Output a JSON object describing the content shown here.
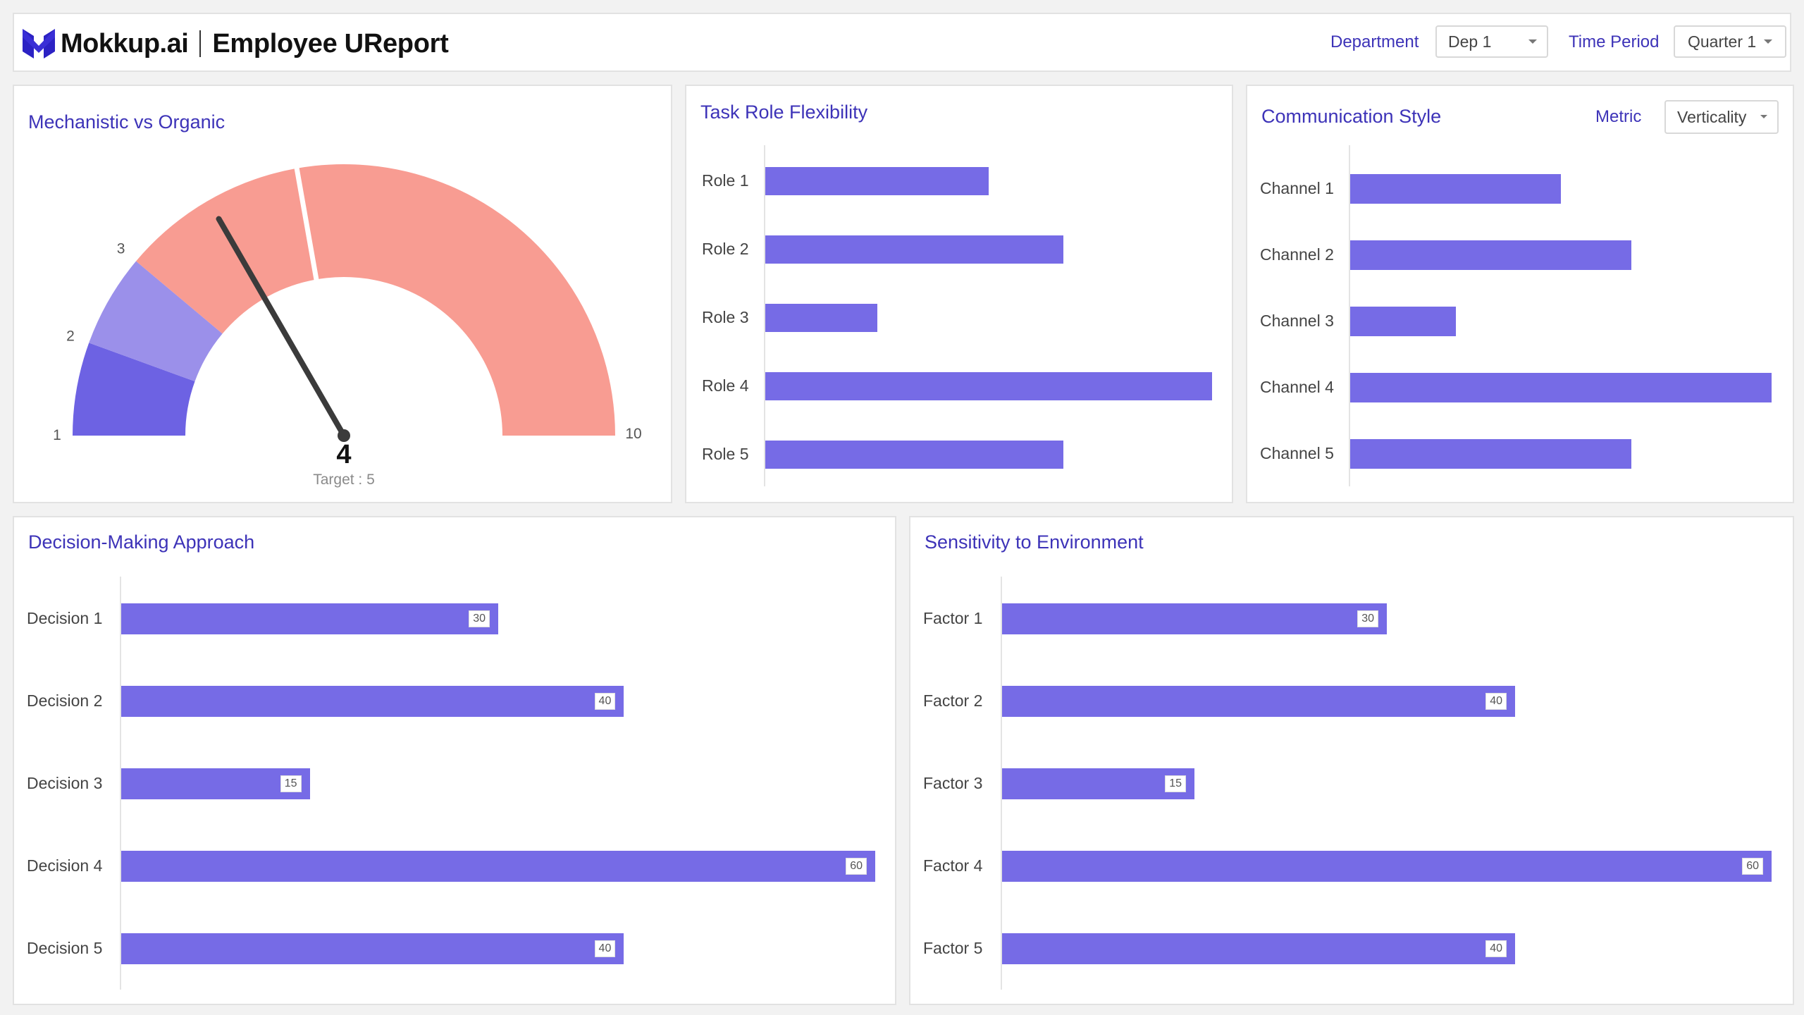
{
  "header": {
    "brand": "Mokkup.ai",
    "app_title": "Employee UReport",
    "department_label": "Department",
    "department_value": "Dep 1",
    "period_label": "Time Period",
    "period_value": "Quarter 1"
  },
  "colors": {
    "accent": "#3d33b8",
    "bar": "#766be6",
    "gauge_low": "#6d62e3",
    "gauge_mid": "#9b90ea",
    "gauge_high": "#f89c92"
  },
  "gauge": {
    "title": "Mechanistic vs Organic",
    "value": 4,
    "value_label": "4",
    "target": 5,
    "target_text": "Target : 5",
    "min": 1,
    "max": 10,
    "tick_1": "1",
    "tick_2": "2",
    "tick_3": "3",
    "tick_10": "10"
  },
  "task_role": {
    "title": "Task Role Flexibility",
    "chart_data": {
      "type": "bar",
      "orientation": "horizontal",
      "categories": [
        "Role 1",
        "Role 2",
        "Role 3",
        "Role 4",
        "Role 5"
      ],
      "values": [
        30,
        40,
        15,
        60,
        40
      ],
      "xlim": [
        0,
        60
      ]
    }
  },
  "communication": {
    "title": "Communication Style",
    "metric_label": "Metric",
    "metric_value": "Verticality",
    "chart_data": {
      "type": "bar",
      "orientation": "horizontal",
      "categories": [
        "Channel 1",
        "Channel 2",
        "Channel 3",
        "Channel 4",
        "Channel 5"
      ],
      "values": [
        30,
        40,
        15,
        60,
        40
      ],
      "xlim": [
        0,
        60
      ]
    }
  },
  "decision": {
    "title": "Decision-Making Approach",
    "chart_data": {
      "type": "bar",
      "orientation": "horizontal",
      "categories": [
        "Decision 1",
        "Decision 2",
        "Decision 3",
        "Decision 4",
        "Decision 5"
      ],
      "values": [
        30,
        40,
        15,
        60,
        40
      ],
      "data_labels": [
        "30",
        "40",
        "15",
        "60",
        "40"
      ],
      "xlim": [
        0,
        60
      ]
    }
  },
  "sensitivity": {
    "title": "Sensitivity to Environment",
    "chart_data": {
      "type": "bar",
      "orientation": "horizontal",
      "categories": [
        "Factor 1",
        "Factor 2",
        "Factor 3",
        "Factor 4",
        "Factor 5"
      ],
      "values": [
        30,
        40,
        15,
        60,
        40
      ],
      "data_labels": [
        "30",
        "40",
        "15",
        "60",
        "40"
      ],
      "xlim": [
        0,
        60
      ]
    }
  }
}
